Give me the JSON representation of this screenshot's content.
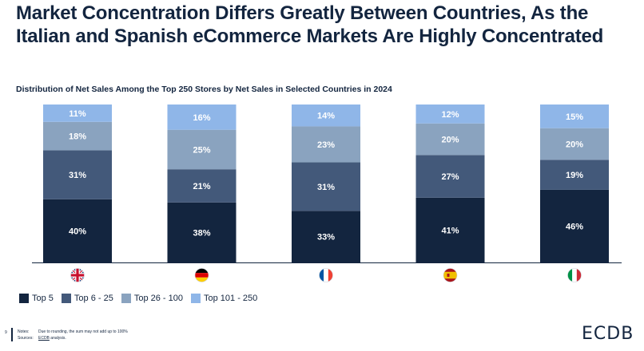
{
  "headline": "Market Concentration Differs Greatly Between Countries, As the Italian and Spanish eCommerce Markets Are Highly Concentrated",
  "chart_data": {
    "type": "bar",
    "stacked": true,
    "percent_stacked": true,
    "title": "Distribution of Net Sales Among the Top 250 Stores by Net Sales in Selected Countries in 2024",
    "categories": [
      "UK",
      "Germany",
      "France",
      "Spain",
      "Italy"
    ],
    "category_icons": [
      "flag-uk-icon",
      "flag-germany-icon",
      "flag-france-icon",
      "flag-spain-icon",
      "flag-italy-icon"
    ],
    "series": [
      {
        "name": "Top 5",
        "color": "#13253f",
        "values": [
          40,
          38,
          33,
          41,
          46
        ]
      },
      {
        "name": "Top 6 - 25",
        "color": "#43597a",
        "values": [
          31,
          21,
          31,
          27,
          19
        ]
      },
      {
        "name": "Top 26 - 100",
        "color": "#8aa3bf",
        "values": [
          18,
          25,
          23,
          20,
          20
        ]
      },
      {
        "name": "Top 101 - 250",
        "color": "#8fb6e8",
        "values": [
          11,
          16,
          14,
          12,
          15
        ]
      }
    ],
    "value_suffix": "%",
    "legend_position": "bottom-left",
    "grid": false
  },
  "notes": {
    "page_number": "9",
    "notes_label": "Notes:",
    "notes_text": "Due to rounding, the sum may not add up to 100%",
    "sources_label": "Sources:",
    "sources_link": "ECDB",
    "sources_text": " analysis."
  },
  "brand": "ECDB"
}
